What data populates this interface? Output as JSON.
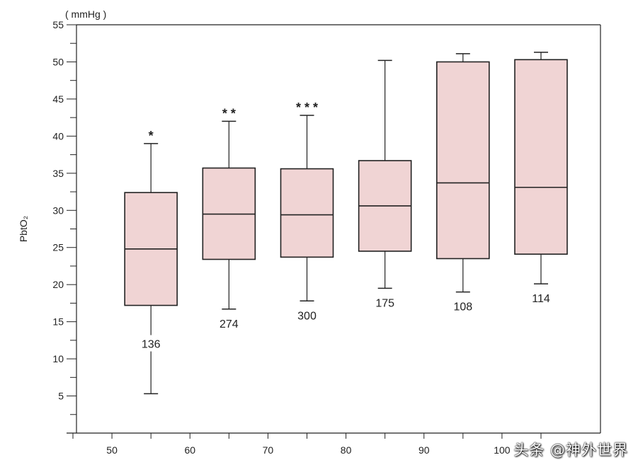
{
  "chart_data": {
    "type": "box",
    "unit_label": "( mmHg )",
    "ylabel": "PbtO₂",
    "xlabel": "",
    "ylim": [
      0,
      55
    ],
    "xlim": [
      45,
      105
    ],
    "y_ticks": [
      5,
      10,
      15,
      20,
      25,
      30,
      35,
      40,
      45,
      50,
      55
    ],
    "x_ticks": [
      50,
      60,
      70,
      80,
      90,
      100
    ],
    "box_fill": "#f0d4d4",
    "box_stroke": "#222222",
    "boxes": [
      {
        "x": 55,
        "whisker_low": 5.3,
        "q1": 17.2,
        "median": 24.8,
        "q3": 32.4,
        "whisker_high": 39.0,
        "n": "136",
        "significance": "*"
      },
      {
        "x": 65,
        "whisker_low": 16.7,
        "q1": 23.4,
        "median": 29.5,
        "q3": 35.7,
        "whisker_high": 42.0,
        "n": "274",
        "significance": "* *"
      },
      {
        "x": 75,
        "whisker_low": 17.8,
        "q1": 23.7,
        "median": 29.4,
        "q3": 35.6,
        "whisker_high": 42.8,
        "n": "300",
        "significance": "* * *"
      },
      {
        "x": 85,
        "whisker_low": 19.5,
        "q1": 24.5,
        "median": 30.6,
        "q3": 36.7,
        "whisker_high": 50.2,
        "n": "175",
        "significance": ""
      },
      {
        "x": 95,
        "whisker_low": 19.0,
        "q1": 23.5,
        "median": 33.7,
        "q3": 50.0,
        "whisker_high": 51.1,
        "n": "108",
        "significance": ""
      },
      {
        "x": 105,
        "whisker_low": 20.1,
        "q1": 24.1,
        "median": 33.1,
        "q3": 50.3,
        "whisker_high": 51.3,
        "n": "114",
        "significance": ""
      }
    ]
  },
  "watermark": "头条 @神外世界"
}
